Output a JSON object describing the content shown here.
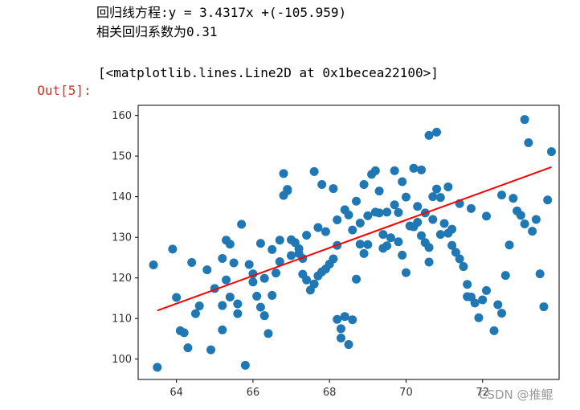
{
  "stdout": {
    "line1": "回归线方程:y = 3.4317x +(-105.959)",
    "line2": "相关回归系数为0.31"
  },
  "output": {
    "prompt": "Out[5]:",
    "text": "[<matplotlib.lines.Line2D at 0x1becea22100>]"
  },
  "watermark": "CSDN @推鲲",
  "chart_data": {
    "type": "scatter",
    "xlim": [
      63.0,
      74.0
    ],
    "ylim": [
      95.0,
      162.5
    ],
    "x_ticks": [
      64,
      66,
      68,
      70,
      72
    ],
    "y_ticks": [
      100,
      110,
      120,
      130,
      140,
      150,
      160
    ],
    "grid": false,
    "colors": {
      "points": "#1f77b4",
      "line": "#ff0000"
    },
    "regression_line": {
      "slope": 3.4317,
      "intercept": -105.959,
      "x_range": [
        63.5,
        73.8
      ]
    },
    "points": [
      [
        63.5,
        98
      ],
      [
        63.4,
        123.2
      ],
      [
        63.9,
        127.1
      ],
      [
        64.1,
        107
      ],
      [
        64.2,
        106.5
      ],
      [
        64.3,
        102.8
      ],
      [
        64.4,
        123.8
      ],
      [
        64.5,
        111.2
      ],
      [
        64.6,
        113.1
      ],
      [
        64.9,
        102.3
      ],
      [
        65.2,
        107.2
      ],
      [
        65.2,
        113.2
      ],
      [
        65.2,
        124.8
      ],
      [
        65.3,
        129.3
      ],
      [
        65.4,
        128.3
      ],
      [
        65.3,
        119.5
      ],
      [
        65.4,
        115.3
      ],
      [
        65.5,
        123.7
      ],
      [
        65.6,
        113.6
      ],
      [
        65.6,
        111.2
      ],
      [
        65.7,
        133.2
      ],
      [
        65.8,
        98.5
      ],
      [
        65.9,
        123.3
      ],
      [
        66.0,
        121.0
      ],
      [
        66.0,
        119.0
      ],
      [
        66.1,
        115.5
      ],
      [
        66.2,
        112.8
      ],
      [
        66.3,
        119.9
      ],
      [
        66.3,
        110.7
      ],
      [
        66.4,
        106.3
      ],
      [
        66.5,
        115.7
      ],
      [
        66.6,
        121.2
      ],
      [
        66.7,
        129.3
      ],
      [
        66.8,
        140.3
      ],
      [
        66.9,
        141.5
      ],
      [
        67.0,
        129.4
      ],
      [
        67.1,
        128.7
      ],
      [
        67.2,
        127.2
      ],
      [
        67.2,
        126.0
      ],
      [
        67.3,
        124.8
      ],
      [
        67.3,
        120.9
      ],
      [
        67.4,
        119.5
      ],
      [
        67.5,
        117.0
      ],
      [
        67.6,
        118.5
      ],
      [
        67.7,
        120.5
      ],
      [
        67.8,
        121.5
      ],
      [
        67.9,
        122.2
      ],
      [
        68.0,
        123.4
      ],
      [
        68.1,
        124.7
      ],
      [
        68.2,
        128.0
      ],
      [
        68.2,
        109.8
      ],
      [
        68.3,
        107.5
      ],
      [
        68.3,
        105.2
      ],
      [
        68.4,
        110.5
      ],
      [
        68.5,
        103.6
      ],
      [
        68.6,
        109.7
      ],
      [
        68.7,
        119.7
      ],
      [
        68.8,
        128.3
      ],
      [
        68.9,
        126.0
      ],
      [
        69.0,
        128.2
      ],
      [
        69.0,
        135.3
      ],
      [
        69.1,
        145.5
      ],
      [
        69.2,
        146.4
      ],
      [
        69.3,
        136.0
      ],
      [
        69.4,
        130.7
      ],
      [
        69.4,
        127.3
      ],
      [
        69.5,
        127.9
      ],
      [
        69.6,
        129.9
      ],
      [
        69.7,
        146.4
      ],
      [
        69.7,
        138.0
      ],
      [
        69.8,
        128.9
      ],
      [
        69.9,
        125.6
      ],
      [
        70.0,
        121.3
      ],
      [
        70.1,
        132.8
      ],
      [
        70.2,
        132.6
      ],
      [
        70.3,
        133.7
      ],
      [
        70.4,
        130.4
      ],
      [
        70.5,
        128.7
      ],
      [
        70.6,
        127.5
      ],
      [
        70.6,
        123.9
      ],
      [
        70.7,
        140.0
      ],
      [
        70.8,
        141.9
      ],
      [
        70.9,
        139.8
      ],
      [
        71.0,
        133.4
      ],
      [
        71.1,
        131.0
      ],
      [
        71.2,
        128.0
      ],
      [
        71.3,
        126.3
      ],
      [
        71.4,
        124.7
      ],
      [
        71.5,
        122.8
      ],
      [
        71.6,
        118.4
      ],
      [
        71.6,
        115.4
      ],
      [
        71.7,
        115.3
      ],
      [
        71.8,
        113.8
      ],
      [
        71.9,
        110.2
      ],
      [
        72.0,
        114.6
      ],
      [
        72.1,
        116.9
      ],
      [
        72.3,
        107.0
      ],
      [
        72.4,
        113.4
      ],
      [
        72.5,
        111.3
      ],
      [
        72.6,
        120.6
      ],
      [
        72.7,
        128.1
      ],
      [
        72.9,
        136.5
      ],
      [
        73.0,
        135.4
      ],
      [
        73.1,
        133.3
      ],
      [
        73.2,
        153.3
      ],
      [
        73.3,
        131.5
      ],
      [
        73.4,
        134.4
      ],
      [
        73.5,
        121.0
      ],
      [
        73.6,
        112.9
      ],
      [
        73.7,
        139.2
      ],
      [
        73.8,
        151.1
      ],
      [
        64.0,
        115.2
      ],
      [
        64.8,
        122.0
      ],
      [
        65.0,
        117.4
      ],
      [
        66.8,
        145.7
      ],
      [
        66.9,
        141.8
      ],
      [
        67.6,
        146.2
      ],
      [
        67.8,
        143.0
      ],
      [
        68.1,
        142.0
      ],
      [
        68.4,
        136.8
      ],
      [
        68.7,
        138.9
      ],
      [
        68.9,
        143.0
      ],
      [
        69.3,
        141.4
      ],
      [
        69.9,
        143.7
      ],
      [
        70.2,
        147.0
      ],
      [
        70.4,
        146.6
      ],
      [
        70.6,
        155.1
      ],
      [
        70.8,
        155.9
      ],
      [
        71.1,
        142.4
      ],
      [
        71.4,
        138.3
      ],
      [
        71.7,
        137.1
      ],
      [
        72.1,
        135.2
      ],
      [
        72.5,
        140.4
      ],
      [
        72.8,
        139.6
      ],
      [
        73.1,
        159.0
      ],
      [
        66.2,
        128.5
      ],
      [
        66.5,
        127.0
      ],
      [
        66.7,
        124.0
      ],
      [
        67.0,
        125.5
      ],
      [
        67.4,
        130.5
      ],
      [
        67.7,
        132.4
      ],
      [
        67.9,
        131.4
      ],
      [
        68.2,
        134.3
      ],
      [
        68.5,
        135.5
      ],
      [
        68.6,
        131.8
      ],
      [
        68.8,
        133.5
      ],
      [
        69.2,
        136.2
      ],
      [
        69.5,
        136.2
      ],
      [
        69.8,
        136.1
      ],
      [
        70.0,
        139.9
      ],
      [
        70.3,
        137.6
      ],
      [
        70.5,
        136.0
      ],
      [
        70.7,
        134.4
      ],
      [
        70.9,
        130.7
      ],
      [
        71.2,
        132.0
      ]
    ]
  }
}
